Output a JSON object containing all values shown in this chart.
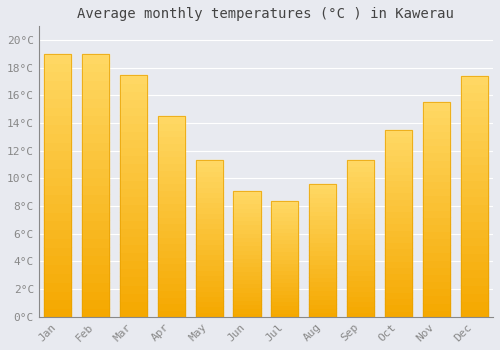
{
  "title": "Average monthly temperatures (°C ) in Kawerau",
  "months": [
    "Jan",
    "Feb",
    "Mar",
    "Apr",
    "May",
    "Jun",
    "Jul",
    "Aug",
    "Sep",
    "Oct",
    "Nov",
    "Dec"
  ],
  "values": [
    19.0,
    19.0,
    17.5,
    14.5,
    11.3,
    9.1,
    8.4,
    9.6,
    11.3,
    13.5,
    15.5,
    17.4
  ],
  "bar_color_bottom": "#F5A800",
  "bar_color_top": "#FFD966",
  "bar_edge_color": "#E8A000",
  "background_color": "#E8EAF0",
  "plot_bg_color": "#E8EAF0",
  "grid_color": "#FFFFFF",
  "yticks": [
    0,
    2,
    4,
    6,
    8,
    10,
    12,
    14,
    16,
    18,
    20
  ],
  "ylim": [
    0,
    21
  ],
  "title_fontsize": 10,
  "tick_fontsize": 8,
  "tick_color": "#888888"
}
